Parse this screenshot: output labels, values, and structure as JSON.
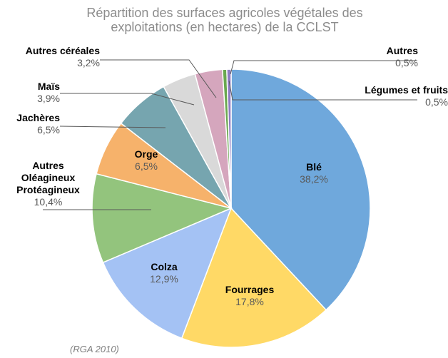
{
  "chart_data": {
    "type": "pie",
    "title": "Répartition des surfaces agricoles végétales des exploitations (en hectares) de la CCLST",
    "source": "(RGA 2010)",
    "categories": [
      "Blé",
      "Fourrages",
      "Colza",
      "Autres Oléagineux Protéagineux",
      "Orge",
      "Jachères",
      "Maïs",
      "Autres céréales",
      "Légumes et fruits",
      "Autres"
    ],
    "values": [
      38.2,
      17.8,
      12.9,
      10.4,
      6.5,
      6.5,
      3.9,
      3.2,
      0.5,
      0.5
    ],
    "value_labels": [
      "38,2%",
      "17,8%",
      "12,9%",
      "10,4%",
      "6,5%",
      "6,5%",
      "3,9%",
      "3,2%",
      "0,5%",
      "0,5%"
    ],
    "colors": [
      "#6fa8dc",
      "#ffd966",
      "#a4c2f4",
      "#93c47d",
      "#f6b26b",
      "#76a5af",
      "#d9d9d9",
      "#d5a6bd",
      "#6aa84f",
      "#8e7cc3"
    ]
  }
}
